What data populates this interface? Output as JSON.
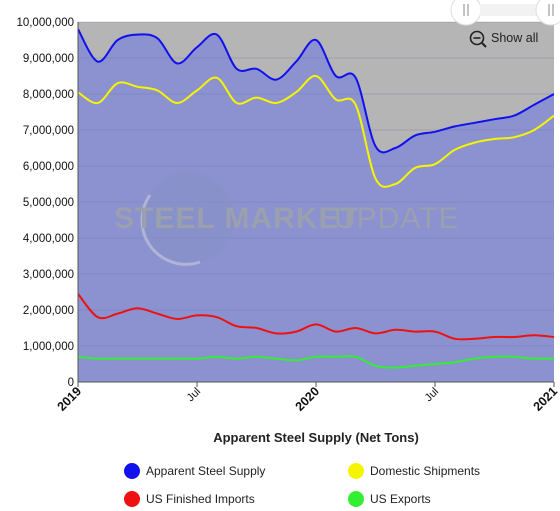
{
  "chart_data": {
    "type": "area",
    "title": "",
    "xlabel": "Apparent Steel Supply (Net Tons)",
    "ylabel": "",
    "ylim": [
      0,
      10000000
    ],
    "y_ticks": [
      0,
      1000000,
      2000000,
      3000000,
      4000000,
      5000000,
      6000000,
      7000000,
      8000000,
      9000000,
      10000000
    ],
    "y_tick_labels": [
      "0",
      "1,000,000",
      "2,000,000",
      "3,000,000",
      "4,000,000",
      "5,000,000",
      "6,000,000",
      "7,000,000",
      "8,000,000",
      "9,000,000",
      "10,000,000"
    ],
    "x_range": [
      "2019-01",
      "2021-01"
    ],
    "x_ticks": [
      {
        "label": "2019",
        "month": 0,
        "bold": true
      },
      {
        "label": "Jul",
        "month": 6,
        "bold": false
      },
      {
        "label": "2020",
        "month": 12,
        "bold": true
      },
      {
        "label": "Jul",
        "month": 18,
        "bold": false
      },
      {
        "label": "2021",
        "month": 24,
        "bold": true
      }
    ],
    "x": [
      "2019-01",
      "2019-02",
      "2019-03",
      "2019-04",
      "2019-05",
      "2019-06",
      "2019-07",
      "2019-08",
      "2019-09",
      "2019-10",
      "2019-11",
      "2019-12",
      "2020-01",
      "2020-02",
      "2020-03",
      "2020-04",
      "2020-05",
      "2020-06",
      "2020-07",
      "2020-08",
      "2020-09",
      "2020-10",
      "2020-11",
      "2020-12",
      "2021-01"
    ],
    "series": [
      {
        "name": "Apparent Steel Supply",
        "color": "#1111ee",
        "values": [
          9800000,
          8900000,
          9500000,
          9650000,
          9550000,
          8850000,
          9300000,
          9650000,
          8700000,
          8700000,
          8400000,
          8900000,
          9500000,
          8500000,
          8450000,
          6550000,
          6500000,
          6850000,
          6950000,
          7100000,
          7200000,
          7300000,
          7400000,
          7700000,
          8000000
        ]
      },
      {
        "name": "Domestic Shipments",
        "color": "#f5f500",
        "values": [
          8050000,
          7750000,
          8300000,
          8200000,
          8100000,
          7750000,
          8100000,
          8450000,
          7750000,
          7900000,
          7750000,
          8050000,
          8500000,
          7850000,
          7700000,
          5650000,
          5500000,
          5950000,
          6050000,
          6450000,
          6650000,
          6750000,
          6800000,
          7000000,
          7400000
        ]
      },
      {
        "name": "US Finished Imports",
        "color": "#ee1111",
        "values": [
          2450000,
          1800000,
          1900000,
          2050000,
          1900000,
          1750000,
          1850000,
          1800000,
          1550000,
          1500000,
          1350000,
          1400000,
          1600000,
          1400000,
          1500000,
          1350000,
          1450000,
          1400000,
          1400000,
          1200000,
          1200000,
          1250000,
          1250000,
          1300000,
          1250000
        ]
      },
      {
        "name": "US Exports",
        "color": "#33ee33",
        "values": [
          700000,
          650000,
          650000,
          650000,
          650000,
          650000,
          650000,
          700000,
          650000,
          700000,
          650000,
          600000,
          700000,
          700000,
          700000,
          450000,
          400000,
          450000,
          500000,
          550000,
          650000,
          700000,
          700000,
          650000,
          650000
        ]
      }
    ],
    "legend_position": "bottom",
    "grid": true
  },
  "watermark": {
    "bold": "STEEL MARKET",
    "light": "UPDATE"
  },
  "toolbar": {
    "show_all_label": "Show all"
  },
  "icons": {
    "reset_zoom": "zoom-out-icon",
    "navigator_handle": "slider-handle-icon"
  },
  "colors": {
    "plot_fill": "#8b92cf",
    "zoom_shade": "#b5b5b5"
  }
}
